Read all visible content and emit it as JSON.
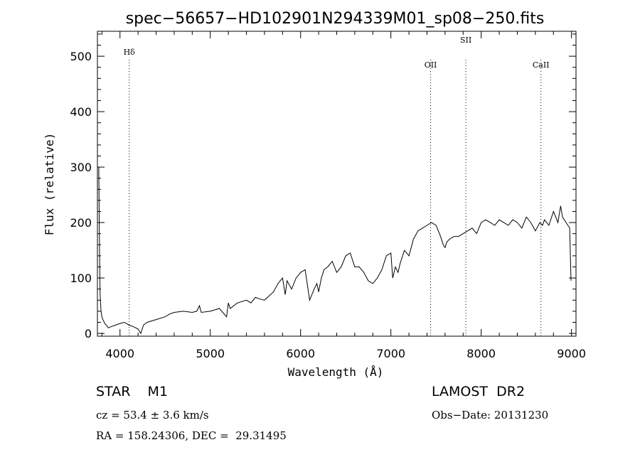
{
  "chart_data": {
    "type": "line",
    "title": "spec−56657−HD102901N294339M01_sp08−250.fits",
    "xlabel": "Wavelength (Å)",
    "ylabel": "Flux (relative)",
    "xlim": [
      3750,
      9050
    ],
    "ylim": [
      -5,
      545
    ],
    "xticks": [
      4000,
      5000,
      6000,
      7000,
      8000,
      9000
    ],
    "yticks": [
      0,
      100,
      200,
      300,
      400,
      500
    ],
    "grid": false,
    "line_markers": [
      {
        "label": "Hδ",
        "x": 4102
      },
      {
        "label": "OII",
        "x": 7440
      },
      {
        "label": "SII",
        "x": 7830
      },
      {
        "label": "CaII",
        "x": 8662
      }
    ],
    "series": [
      {
        "x": [
          3765,
          3770,
          3775,
          3780,
          3790,
          3800,
          3810,
          3820,
          3830,
          3850,
          3870,
          3900,
          3950,
          4000,
          4050,
          4100,
          4150,
          4200,
          4230,
          4260,
          4300,
          4400,
          4500,
          4550,
          4600,
          4700,
          4800,
          4850,
          4880,
          4900,
          5000,
          5100,
          5180,
          5200,
          5220,
          5300,
          5400,
          5450,
          5500,
          5550,
          5600,
          5700,
          5750,
          5800,
          5830,
          5850,
          5900,
          5950,
          6000,
          6050,
          6100,
          6150,
          6180,
          6200,
          6230,
          6260,
          6300,
          6350,
          6400,
          6450,
          6500,
          6550,
          6600,
          6650,
          6700,
          6750,
          6800,
          6850,
          6900,
          6950,
          7000,
          7020,
          7050,
          7080,
          7100,
          7150,
          7200,
          7250,
          7300,
          7350,
          7400,
          7450,
          7500,
          7550,
          7580,
          7600,
          7620,
          7650,
          7700,
          7750,
          7800,
          7850,
          7900,
          7950,
          8000,
          8050,
          8100,
          8150,
          8200,
          8250,
          8300,
          8350,
          8400,
          8450,
          8500,
          8550,
          8600,
          8650,
          8680,
          8700,
          8750,
          8800,
          8850,
          8880,
          8900,
          8940,
          8980,
          8995
        ],
        "y": [
          300,
          210,
          120,
          70,
          40,
          30,
          25,
          22,
          18,
          15,
          10,
          12,
          15,
          18,
          20,
          15,
          12,
          8,
          0,
          15,
          20,
          25,
          30,
          35,
          38,
          40,
          38,
          40,
          50,
          38,
          40,
          45,
          30,
          55,
          45,
          55,
          60,
          55,
          65,
          62,
          60,
          75,
          90,
          100,
          70,
          95,
          80,
          100,
          110,
          115,
          60,
          80,
          90,
          75,
          100,
          115,
          120,
          130,
          110,
          120,
          140,
          145,
          120,
          120,
          110,
          95,
          90,
          100,
          115,
          140,
          145,
          100,
          120,
          110,
          125,
          150,
          140,
          170,
          185,
          190,
          195,
          200,
          195,
          175,
          160,
          155,
          165,
          170,
          175,
          175,
          180,
          185,
          190,
          180,
          200,
          205,
          200,
          195,
          205,
          200,
          195,
          205,
          200,
          190,
          210,
          200,
          185,
          200,
          195,
          205,
          195,
          220,
          200,
          230,
          210,
          200,
          190,
          95
        ]
      }
    ]
  },
  "footer": {
    "object_type": "STAR    M1",
    "survey": "LAMOST  DR2",
    "cz": "cz = 53.4 ± 3.6 km/s",
    "obs_date": "Obs−Date: 20131230",
    "coords": "RA = 158.24306, DEC =  29.31495"
  }
}
